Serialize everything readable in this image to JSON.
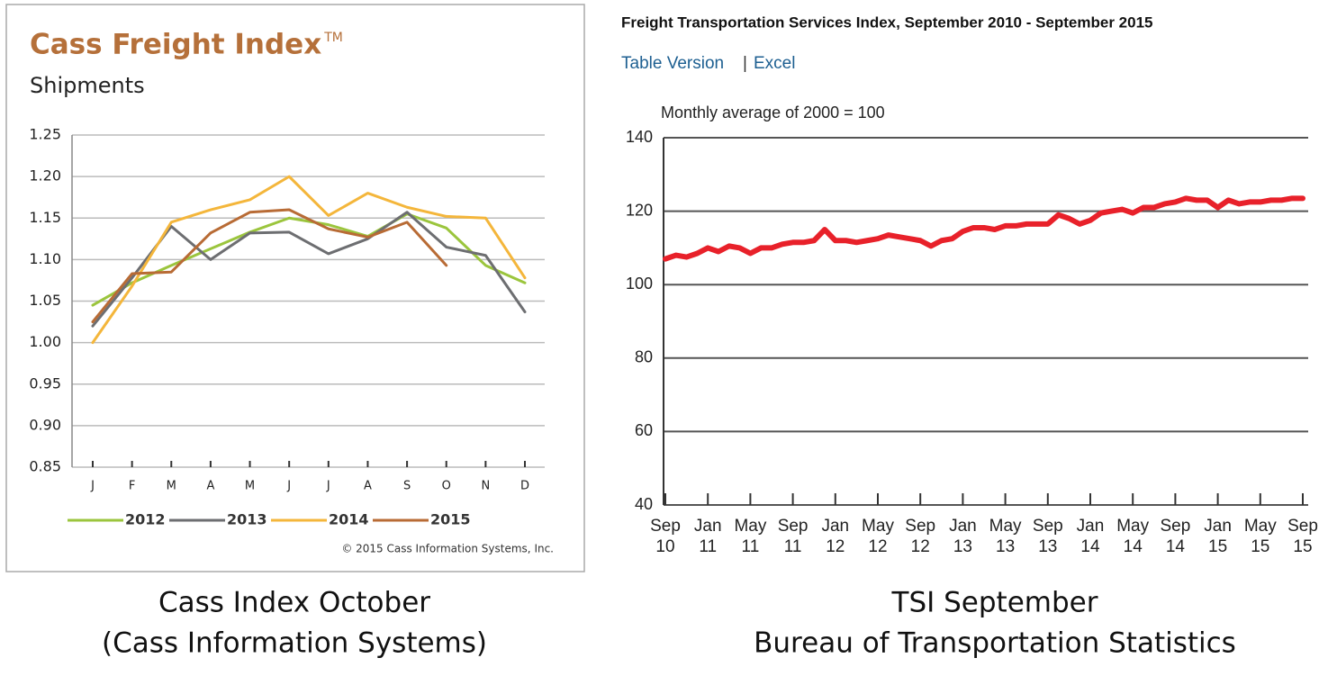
{
  "chart_data": [
    {
      "type": "line",
      "title": "Cass Freight Index",
      "trademark": "TM",
      "subtitle": "Shipments",
      "categories": [
        "J",
        "F",
        "M",
        "A",
        "M",
        "J",
        "J",
        "A",
        "S",
        "O",
        "N",
        "D"
      ],
      "series": [
        {
          "name": "2012",
          "color": "#9bc53d",
          "values": [
            1.045,
            1.072,
            1.093,
            1.113,
            1.133,
            1.15,
            1.142,
            1.128,
            1.155,
            1.138,
            1.093,
            1.072
          ]
        },
        {
          "name": "2013",
          "color": "#6d6e71",
          "values": [
            1.02,
            1.078,
            1.14,
            1.1,
            1.132,
            1.133,
            1.107,
            1.125,
            1.157,
            1.115,
            1.105,
            1.037
          ]
        },
        {
          "name": "2014",
          "color": "#f4b63b",
          "values": [
            1.0,
            1.068,
            1.145,
            1.16,
            1.172,
            1.2,
            1.153,
            1.18,
            1.163,
            1.152,
            1.15,
            1.078
          ]
        },
        {
          "name": "2015",
          "color": "#b86b35",
          "values": [
            1.025,
            1.083,
            1.085,
            1.132,
            1.157,
            1.16,
            1.137,
            1.127,
            1.145,
            1.093,
            null,
            null
          ]
        }
      ],
      "ylim": [
        0.85,
        1.25
      ],
      "yticks": [
        0.85,
        {
          "value": 0.9,
          "label": "0.90"
        },
        0.95,
        {
          "value": 1,
          "label": "1.00"
        },
        1.05,
        {
          "value": 1.1,
          "label": "1.10"
        },
        1.15,
        {
          "value": 1.2,
          "label": "1.20"
        },
        1.25
      ],
      "grid": true,
      "legend": "bottom",
      "copyright": "© 2015 Cass Information Systems, Inc.",
      "caption": [
        "Cass Index October",
        "(Cass Information Systems)"
      ]
    },
    {
      "type": "line",
      "title": "Freight Transportation Services Index, September 2010 - September 2015",
      "links": [
        "Table Version",
        "Excel"
      ],
      "links_separator": "|",
      "y_label": "Monthly average of 2000 = 100",
      "categories": [
        "Sep 10",
        null,
        null,
        null,
        "Jan 11",
        null,
        null,
        null,
        "May 11",
        null,
        null,
        null,
        "Sep 11",
        null,
        null,
        null,
        "Jan 12",
        null,
        null,
        null,
        "May 12",
        null,
        null,
        null,
        "Sep 12",
        null,
        null,
        null,
        "Jan 13",
        null,
        null,
        null,
        "May 13",
        null,
        null,
        null,
        "Sep 13",
        null,
        null,
        null,
        "Jan 14",
        null,
        null,
        null,
        "May 14",
        null,
        null,
        null,
        "Sep 14",
        null,
        null,
        null,
        "Jan 15",
        null,
        null,
        null,
        "May 15",
        null,
        null,
        null,
        "Sep 15"
      ],
      "series": [
        {
          "name": "TSI",
          "color": "#e8212a",
          "values": [
            107,
            108,
            107.5,
            108.5,
            110,
            109,
            110.5,
            110,
            108.5,
            110,
            110,
            111,
            111.5,
            111.5,
            112,
            115,
            112,
            112,
            111.5,
            112,
            112.5,
            113.5,
            113,
            112.5,
            112,
            110.5,
            112,
            112.5,
            114.5,
            115.5,
            115.5,
            115,
            116,
            116,
            116.5,
            116.5,
            116.5,
            119,
            118,
            116.5,
            117.5,
            119.5,
            120,
            120.5,
            119.5,
            121,
            121,
            122,
            122.5,
            123.5,
            123,
            123,
            121,
            123,
            122,
            122.5,
            122.5,
            123,
            123,
            123.5,
            123.5
          ]
        }
      ],
      "ylim": [
        40,
        140
      ],
      "yticks": [
        40,
        60,
        80,
        100,
        120,
        140
      ],
      "grid": true,
      "caption": [
        "TSI September",
        "Bureau of Transportation Statistics"
      ]
    }
  ]
}
